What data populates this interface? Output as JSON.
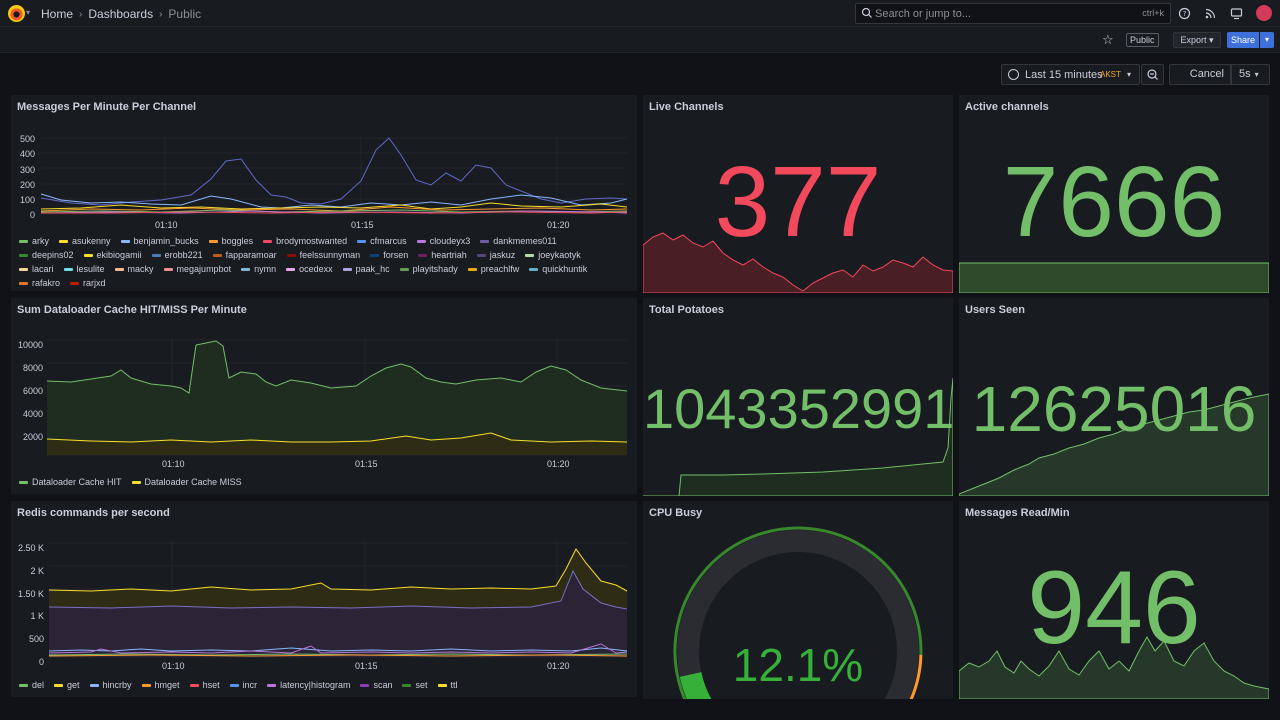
{
  "breadcrumb": {
    "home": "Home",
    "dashboards": "Dashboards",
    "current": "Public"
  },
  "search": {
    "placeholder": "Search or jump to...",
    "shortcut": "ctrl+k"
  },
  "toolbar": {
    "public_badge": "Public",
    "export_label": "Export",
    "share_label": "Share"
  },
  "timepicker": {
    "range": "Last 15 minutes",
    "timezone": "AKST",
    "cancel_label": "Cancel",
    "refresh_interval": "5s"
  },
  "colors": {
    "green": "#73bf69",
    "red": "#f2495c",
    "yellow": "#fade2a",
    "blue": "#8ab8ff",
    "orange": "#ff9830",
    "purple": "#b877d9",
    "bg": "#111217",
    "panel": "#181b1f"
  },
  "x_ticks": [
    "01:10",
    "01:15",
    "01:20"
  ],
  "panels": {
    "messages": {
      "title": "Messages Per Minute Per Channel",
      "y_ticks": [
        "500",
        "400",
        "300",
        "200",
        "100",
        "0"
      ],
      "legend": [
        {
          "name": "arky",
          "color": "#73bf69"
        },
        {
          "name": "asukenny",
          "color": "#fade2a"
        },
        {
          "name": "benjamin_bucks",
          "color": "#8ab8ff"
        },
        {
          "name": "boggles",
          "color": "#ff9830"
        },
        {
          "name": "brodymostwanted",
          "color": "#f2495c"
        },
        {
          "name": "cfmarcus",
          "color": "#5794f2"
        },
        {
          "name": "cloudeyx3",
          "color": "#b877d9"
        },
        {
          "name": "dankmemes011",
          "color": "#705da0"
        },
        {
          "name": "deepins02",
          "color": "#37872d"
        },
        {
          "name": "ekibiogamii",
          "color": "#fade2a"
        },
        {
          "name": "erobb221",
          "color": "#447ebc"
        },
        {
          "name": "fapparamoar",
          "color": "#c15c17"
        },
        {
          "name": "feelssunnyman",
          "color": "#890f02"
        },
        {
          "name": "forsen",
          "color": "#0a437c"
        },
        {
          "name": "heartriah",
          "color": "#6d1f62"
        },
        {
          "name": "jaskuz",
          "color": "#584477"
        },
        {
          "name": "joeykaotyk",
          "color": "#b7dbab"
        },
        {
          "name": "lacari",
          "color": "#f4d598"
        },
        {
          "name": "lesulite",
          "color": "#70dbed"
        },
        {
          "name": "macky",
          "color": "#f9ba8f"
        },
        {
          "name": "megajumpbot",
          "color": "#f29191"
        },
        {
          "name": "nymn",
          "color": "#82b5d8"
        },
        {
          "name": "ocedexx",
          "color": "#e5a8e2"
        },
        {
          "name": "paak_hc",
          "color": "#aea2e0"
        },
        {
          "name": "playitshady",
          "color": "#629e51"
        },
        {
          "name": "preachlfw",
          "color": "#e5ac0e"
        },
        {
          "name": "quickhuntik",
          "color": "#64b0c8"
        },
        {
          "name": "rafakro",
          "color": "#e0752d"
        },
        {
          "name": "rarjxd",
          "color": "#bf1b00"
        }
      ]
    },
    "live_channels": {
      "title": "Live Channels",
      "value": "377"
    },
    "active_channels": {
      "title": "Active channels",
      "value": "7666"
    },
    "dataloader": {
      "title": "Sum Dataloader Cache HIT/MISS Per Minute",
      "y_ticks": [
        "10000",
        "8000",
        "6000",
        "4000",
        "2000"
      ],
      "legend": [
        {
          "name": "Dataloader Cache HIT",
          "color": "#73bf69"
        },
        {
          "name": "Dataloader Cache MISS",
          "color": "#fade2a"
        }
      ]
    },
    "total_potatoes": {
      "title": "Total Potatoes",
      "value": "1043352991"
    },
    "users_seen": {
      "title": "Users Seen",
      "value": "12625016"
    },
    "redis": {
      "title": "Redis commands per second",
      "y_ticks": [
        "2.50 K",
        "2 K",
        "1.50 K",
        "1 K",
        "500",
        "0"
      ],
      "legend": [
        {
          "name": "del",
          "color": "#73bf69"
        },
        {
          "name": "get",
          "color": "#fade2a"
        },
        {
          "name": "hincrby",
          "color": "#8ab8ff"
        },
        {
          "name": "hmget",
          "color": "#ff9830"
        },
        {
          "name": "hset",
          "color": "#f2495c"
        },
        {
          "name": "incr",
          "color": "#5794f2"
        },
        {
          "name": "latency|histogram",
          "color": "#b877d9"
        },
        {
          "name": "scan",
          "color": "#8f3bb8"
        },
        {
          "name": "set",
          "color": "#37872d"
        },
        {
          "name": "ttl",
          "color": "#fade2a"
        }
      ]
    },
    "cpu_busy": {
      "title": "CPU Busy",
      "value": "12.1%",
      "fraction": 0.121
    },
    "messages_read": {
      "title": "Messages Read/Min",
      "value": "946"
    }
  }
}
